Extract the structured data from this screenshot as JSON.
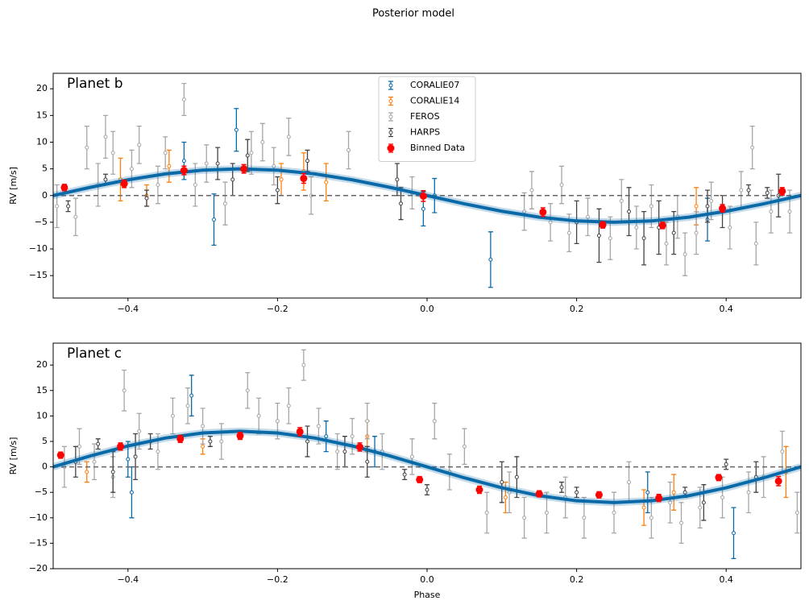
{
  "title": "Posterior model",
  "chart_data": [
    {
      "type": "errorbar",
      "title": "Planet b",
      "ylabel": "RV [m/s]",
      "legend": "upper center",
      "hline": 0,
      "xlim": [
        -0.5,
        0.5
      ],
      "ylim": [
        -19.2,
        22.9
      ],
      "xticks": [
        {
          "value": -0.4,
          "label": "−0.4"
        },
        {
          "value": -0.2,
          "label": "−0.2"
        },
        {
          "value": 0,
          "label": "0.0"
        },
        0.2,
        0.4
      ],
      "yticks": [
        {
          "value": -15,
          "label": "−15"
        },
        {
          "value": -10,
          "label": "−10"
        },
        {
          "value": -5,
          "label": "−5"
        },
        0,
        5,
        10,
        15,
        20
      ],
      "model": {
        "color": "#0a6aa8",
        "x": [
          -0.5,
          -0.45,
          -0.4,
          -0.35,
          -0.3,
          -0.25,
          -0.2,
          -0.15,
          -0.1,
          -0.05,
          0,
          0.05,
          0.1,
          0.15,
          0.2,
          0.25,
          0.3,
          0.35,
          0.4,
          0.45,
          0.5
        ],
        "values": [
          0,
          1.55,
          2.94,
          4.05,
          4.76,
          5,
          4.76,
          4.05,
          2.94,
          1.55,
          0,
          -1.55,
          -2.94,
          -4.05,
          -4.76,
          -5,
          -4.76,
          -4.05,
          -2.94,
          -1.55,
          0
        ]
      },
      "series": [
        {
          "name": "CORALIE07",
          "color": "#0a6aa8",
          "filled": false,
          "x": [
            -0.325,
            -0.285,
            -0.255,
            -0.005,
            0.01,
            0.085,
            0.375
          ],
          "values": [
            6.5,
            -4.5,
            12.3,
            -2.5,
            0,
            -12,
            -4.5
          ],
          "errors": [
            3.5,
            4.8,
            4,
            3.2,
            3.2,
            5.2,
            4
          ]
        },
        {
          "name": "CORALIE14",
          "color": "#ff7f0e",
          "filled": false,
          "x": [
            -0.41,
            -0.375,
            -0.345,
            -0.195,
            -0.165,
            -0.135,
            0.36
          ],
          "values": [
            3,
            0,
            5.5,
            3,
            4.5,
            2.5,
            -2
          ],
          "errors": [
            4,
            2,
            3,
            3,
            3.5,
            3.5,
            3.5
          ]
        },
        {
          "name": "FEROS",
          "color": "#a6a6a6",
          "filled": false,
          "x": [
            -0.495,
            -0.47,
            -0.455,
            -0.44,
            -0.43,
            -0.42,
            -0.395,
            -0.385,
            -0.36,
            -0.35,
            -0.325,
            -0.31,
            -0.295,
            -0.27,
            -0.235,
            -0.22,
            -0.205,
            -0.185,
            -0.155,
            -0.105,
            -0.02,
            0.13,
            0.14,
            0.165,
            0.18,
            0.19,
            0.215,
            0.245,
            0.26,
            0.28,
            0.3,
            0.32,
            0.335,
            0.345,
            0.36,
            0.38,
            0.405,
            0.42,
            0.435,
            0.44,
            0.46,
            0.485
          ],
          "values": [
            -2,
            -4,
            9,
            2,
            11,
            8,
            5,
            9.5,
            2,
            8,
            18,
            2,
            6,
            -1.5,
            8,
            10,
            5.5,
            11,
            0,
            8.5,
            0.5,
            -3,
            1,
            -5,
            2,
            -7,
            -4,
            -8,
            -1,
            -6,
            -2,
            -9,
            -4,
            -11,
            -7,
            -1,
            -6,
            1,
            9,
            -9,
            -3,
            -3
          ],
          "errors": [
            4,
            3.5,
            4,
            4,
            4,
            4,
            3.5,
            3.5,
            3.5,
            3,
            3,
            4,
            3.5,
            4,
            4,
            3.5,
            3.5,
            3.5,
            3.5,
            3.5,
            3,
            3.5,
            3.5,
            3.5,
            3.5,
            3.5,
            3.5,
            4,
            4,
            4,
            4,
            4,
            4,
            4,
            4,
            3.5,
            4,
            3.5,
            4,
            4,
            4,
            4
          ]
        },
        {
          "name": "HARPS",
          "color": "#444444",
          "filled": false,
          "x": [
            -0.48,
            -0.43,
            -0.375,
            -0.28,
            -0.26,
            -0.24,
            -0.2,
            -0.16,
            -0.04,
            -0.035,
            0.2,
            0.23,
            0.27,
            0.29,
            0.31,
            0.33,
            0.375,
            0.395,
            0.43,
            0.455,
            0.47
          ],
          "values": [
            -2,
            3,
            -0.5,
            6,
            3,
            7.5,
            1,
            6.5,
            3,
            -1.5,
            -5,
            -7.5,
            -3,
            -8,
            -6,
            -7,
            -2,
            -3,
            1,
            0.5,
            0
          ],
          "errors": [
            1,
            1,
            1.5,
            3,
            3,
            3,
            2.5,
            2,
            3,
            3,
            4,
            5,
            4.5,
            5,
            5,
            4,
            3,
            3,
            1,
            1,
            4
          ]
        },
        {
          "name": "Binned Data",
          "color": "#ff0000",
          "filled": true,
          "x": [
            -0.485,
            -0.405,
            -0.325,
            -0.245,
            -0.165,
            -0.005,
            0.155,
            0.235,
            0.315,
            0.395,
            0.475
          ],
          "values": [
            1.5,
            2.2,
            4.7,
            5,
            3.2,
            -0.1,
            -3.1,
            -5.5,
            -5.6,
            -2.4,
            0.8
          ],
          "errors": [
            0.6,
            0.7,
            0.8,
            0.8,
            0.9,
            1,
            0.8,
            0.6,
            0.6,
            0.7,
            0.7
          ]
        }
      ]
    },
    {
      "type": "errorbar",
      "title": "Planet c",
      "ylabel": "RV [m/s]",
      "xlabel": "Phase",
      "hline": 0,
      "xlim": [
        -0.5,
        0.5
      ],
      "ylim": [
        -20,
        24.3
      ],
      "xticks": [
        {
          "value": -0.4,
          "label": "−0.4"
        },
        {
          "value": -0.2,
          "label": "−0.2"
        },
        {
          "value": 0,
          "label": "0.0"
        },
        0.2,
        0.4
      ],
      "yticks": [
        {
          "value": -20,
          "label": "−20"
        },
        {
          "value": -15,
          "label": "−15"
        },
        {
          "value": -10,
          "label": "−10"
        },
        {
          "value": -5,
          "label": "−5"
        },
        0,
        5,
        10,
        15,
        20
      ],
      "model": {
        "color": "#0a6aa8",
        "x": [
          -0.5,
          -0.45,
          -0.4,
          -0.35,
          -0.3,
          -0.25,
          -0.2,
          -0.15,
          -0.1,
          -0.05,
          0,
          0.05,
          0.1,
          0.15,
          0.2,
          0.25,
          0.3,
          0.35,
          0.4,
          0.45,
          0.5
        ],
        "values": [
          0,
          2.16,
          4.11,
          5.66,
          6.66,
          7,
          6.66,
          5.66,
          4.11,
          2.16,
          0,
          -2.16,
          -4.11,
          -5.66,
          -6.66,
          -7,
          -6.66,
          -5.66,
          -4.11,
          -2.16,
          0
        ]
      },
      "series": [
        {
          "name": "CORALIE07",
          "color": "#0a6aa8",
          "filled": false,
          "x": [
            -0.4,
            -0.395,
            -0.315,
            -0.135,
            -0.07,
            0.295,
            0.41
          ],
          "values": [
            1.5,
            -5,
            14,
            6,
            3,
            -5,
            -13
          ],
          "errors": [
            3.5,
            5,
            4,
            3,
            3,
            4,
            5
          ]
        },
        {
          "name": "CORALIE14",
          "color": "#ff7f0e",
          "filled": false,
          "x": [
            -0.455,
            -0.3,
            -0.08,
            0.105,
            0.29,
            0.33,
            0.48
          ],
          "values": [
            -1,
            4,
            6,
            -6,
            -8,
            -5,
            -1
          ],
          "errors": [
            2,
            1.5,
            3,
            3,
            3.5,
            3.5,
            5
          ]
        },
        {
          "name": "FEROS",
          "color": "#a6a6a6",
          "filled": false,
          "x": [
            -0.485,
            -0.465,
            -0.445,
            -0.42,
            -0.405,
            -0.385,
            -0.36,
            -0.34,
            -0.32,
            -0.3,
            -0.275,
            -0.24,
            -0.225,
            -0.2,
            -0.185,
            -0.165,
            -0.145,
            -0.12,
            -0.1,
            -0.08,
            -0.06,
            -0.02,
            0.01,
            0.03,
            0.05,
            0.08,
            0.11,
            0.13,
            0.16,
            0.185,
            0.21,
            0.25,
            0.27,
            0.3,
            0.325,
            0.34,
            0.365,
            0.395,
            0.43,
            0.45,
            0.475,
            0.495
          ],
          "values": [
            0,
            4,
            1,
            -2,
            15,
            7,
            3,
            10,
            12,
            8,
            5,
            15,
            10,
            9,
            12,
            20,
            8,
            3,
            6,
            9,
            3,
            2,
            9,
            -1,
            4,
            -9,
            -5,
            -10,
            -9,
            -6,
            -10,
            -9,
            -3,
            -10,
            -7,
            -11,
            -8,
            -6,
            -5,
            -2,
            3,
            -9
          ],
          "errors": [
            4,
            3.5,
            3.5,
            4,
            4,
            3.5,
            3.5,
            3.5,
            3.5,
            3.5,
            3.5,
            3.5,
            3.5,
            3.5,
            3.5,
            3,
            3.5,
            3.5,
            3.5,
            3.5,
            3.5,
            3.5,
            3.5,
            3.5,
            3.5,
            4,
            4,
            4,
            4,
            4,
            4,
            4,
            4,
            4,
            4,
            4,
            4,
            4,
            4,
            4,
            4,
            4
          ]
        },
        {
          "name": "HARPS",
          "color": "#444444",
          "filled": false,
          "x": [
            -0.47,
            -0.44,
            -0.42,
            -0.39,
            -0.37,
            -0.29,
            -0.16,
            -0.11,
            -0.08,
            -0.03,
            0,
            0.1,
            0.12,
            0.18,
            0.2,
            0.345,
            0.37,
            0.4,
            0.44
          ],
          "values": [
            1,
            4.5,
            -1,
            2,
            5,
            5,
            5,
            3,
            1,
            -1.5,
            -4.5,
            -3,
            -2,
            -4,
            -5,
            -5,
            -7,
            0.5,
            -2
          ],
          "errors": [
            3,
            1,
            4,
            4.5,
            1.5,
            1,
            3,
            3,
            3,
            1,
            1,
            4,
            4,
            1,
            1,
            1,
            3.5,
            1,
            3
          ]
        },
        {
          "name": "Binned Data",
          "color": "#ff0000",
          "filled": true,
          "x": [
            -0.49,
            -0.41,
            -0.33,
            -0.25,
            -0.17,
            -0.09,
            -0.01,
            0.07,
            0.15,
            0.23,
            0.31,
            0.39,
            0.47
          ],
          "values": [
            2.3,
            4,
            5.5,
            6.1,
            6.9,
            3.9,
            -2.5,
            -4.5,
            -5.3,
            -5.5,
            -6.1,
            -2.1,
            -2.8
          ],
          "errors": [
            0.6,
            0.7,
            0.7,
            0.7,
            0.8,
            0.8,
            0.6,
            0.7,
            0.6,
            0.6,
            0.7,
            0.6,
            0.9
          ]
        }
      ]
    }
  ]
}
